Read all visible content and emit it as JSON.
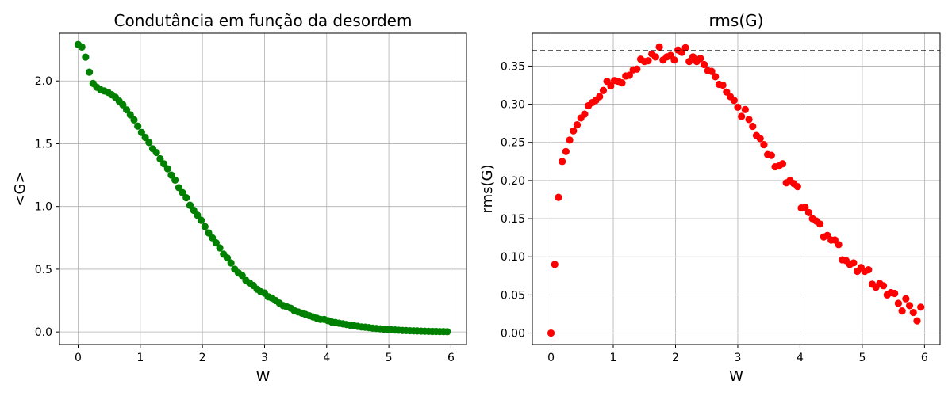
{
  "chart_data": [
    {
      "type": "scatter",
      "title": "Condutância em função da desordem",
      "xlabel": "W",
      "ylabel": "<G>",
      "xlim": [
        -0.3,
        6.25
      ],
      "ylim": [
        -0.1,
        2.38
      ],
      "xticks": [
        "0",
        "1",
        "2",
        "3",
        "4",
        "5",
        "6"
      ],
      "xtick_values": [
        0,
        1,
        2,
        3,
        4,
        5,
        6
      ],
      "yticks": [
        "0.0",
        "0.5",
        "1.0",
        "1.5",
        "2.0"
      ],
      "ytick_values": [
        0,
        0.5,
        1.0,
        1.5,
        2.0
      ],
      "grid": true,
      "color": "#008000",
      "series": [
        {
          "x": [
            0.0,
            0.06,
            0.12,
            0.18,
            0.24,
            0.3,
            0.36,
            0.42,
            0.48,
            0.54,
            0.6,
            0.66,
            0.72,
            0.78,
            0.84,
            0.9,
            0.96,
            1.02,
            1.08,
            1.14,
            1.2,
            1.26,
            1.32,
            1.38,
            1.44,
            1.5,
            1.56,
            1.62,
            1.68,
            1.74,
            1.8,
            1.86,
            1.92,
            1.98,
            2.04,
            2.1,
            2.16,
            2.22,
            2.28,
            2.34,
            2.4,
            2.46,
            2.52,
            2.58,
            2.64,
            2.7,
            2.76,
            2.82,
            2.88,
            2.94,
            3.0,
            3.06,
            3.12,
            3.18,
            3.24,
            3.3,
            3.36,
            3.42,
            3.48,
            3.54,
            3.6,
            3.66,
            3.72,
            3.78,
            3.84,
            3.9,
            3.96,
            4.02,
            4.08,
            4.14,
            4.2,
            4.26,
            4.32,
            4.38,
            4.44,
            4.5,
            4.56,
            4.62,
            4.68,
            4.74,
            4.8,
            4.86,
            4.92,
            4.98,
            5.04,
            5.1,
            5.16,
            5.22,
            5.28,
            5.34,
            5.4,
            5.46,
            5.52,
            5.58,
            5.64,
            5.7,
            5.76,
            5.82,
            5.88,
            5.94
          ],
          "y": [
            2.29,
            2.27,
            2.19,
            2.07,
            1.98,
            1.95,
            1.93,
            1.92,
            1.91,
            1.89,
            1.87,
            1.84,
            1.81,
            1.77,
            1.73,
            1.69,
            1.64,
            1.59,
            1.55,
            1.51,
            1.46,
            1.43,
            1.38,
            1.34,
            1.3,
            1.25,
            1.21,
            1.15,
            1.11,
            1.07,
            1.01,
            0.97,
            0.93,
            0.89,
            0.84,
            0.79,
            0.75,
            0.71,
            0.67,
            0.62,
            0.59,
            0.55,
            0.5,
            0.47,
            0.45,
            0.41,
            0.39,
            0.37,
            0.34,
            0.32,
            0.31,
            0.28,
            0.27,
            0.25,
            0.23,
            0.21,
            0.2,
            0.19,
            0.17,
            0.16,
            0.15,
            0.14,
            0.13,
            0.12,
            0.11,
            0.1,
            0.1,
            0.09,
            0.08,
            0.075,
            0.07,
            0.065,
            0.06,
            0.055,
            0.05,
            0.045,
            0.04,
            0.038,
            0.035,
            0.03,
            0.028,
            0.025,
            0.022,
            0.02,
            0.018,
            0.016,
            0.014,
            0.012,
            0.011,
            0.01,
            0.009,
            0.008,
            0.007,
            0.006,
            0.005,
            0.004,
            0.004,
            0.003,
            0.003,
            0.002
          ]
        }
      ]
    },
    {
      "type": "scatter",
      "title": "rms(G)",
      "xlabel": "W",
      "ylabel": "rms(G)",
      "xlim": [
        -0.3,
        6.25
      ],
      "ylim": [
        -0.015,
        0.393
      ],
      "xticks": [
        "0",
        "1",
        "2",
        "3",
        "4",
        "5",
        "6"
      ],
      "xtick_values": [
        0,
        1,
        2,
        3,
        4,
        5,
        6
      ],
      "yticks": [
        "0.00",
        "0.05",
        "0.10",
        "0.15",
        "0.20",
        "0.25",
        "0.30",
        "0.35"
      ],
      "ytick_values": [
        0,
        0.05,
        0.1,
        0.15,
        0.2,
        0.25,
        0.3,
        0.35
      ],
      "grid": true,
      "color": "#ff0000",
      "reference_line": {
        "y": 0.37,
        "style": "dashed",
        "color": "#000000"
      },
      "series": [
        {
          "x": [
            0.0,
            0.06,
            0.12,
            0.18,
            0.24,
            0.3,
            0.36,
            0.42,
            0.48,
            0.54,
            0.6,
            0.66,
            0.72,
            0.78,
            0.84,
            0.9,
            0.96,
            1.02,
            1.08,
            1.14,
            1.2,
            1.26,
            1.32,
            1.38,
            1.44,
            1.5,
            1.56,
            1.62,
            1.68,
            1.74,
            1.8,
            1.86,
            1.92,
            1.98,
            2.04,
            2.1,
            2.16,
            2.22,
            2.28,
            2.34,
            2.4,
            2.46,
            2.52,
            2.58,
            2.64,
            2.7,
            2.76,
            2.82,
            2.88,
            2.94,
            3.0,
            3.06,
            3.12,
            3.18,
            3.24,
            3.3,
            3.36,
            3.42,
            3.48,
            3.54,
            3.6,
            3.66,
            3.72,
            3.78,
            3.84,
            3.9,
            3.96,
            4.02,
            4.08,
            4.14,
            4.2,
            4.26,
            4.32,
            4.38,
            4.44,
            4.5,
            4.56,
            4.62,
            4.68,
            4.74,
            4.8,
            4.86,
            4.92,
            4.98,
            5.04,
            5.1,
            5.16,
            5.22,
            5.28,
            5.34,
            5.4,
            5.46,
            5.52,
            5.58,
            5.64,
            5.7,
            5.76,
            5.82,
            5.88,
            5.94
          ],
          "y": [
            0.0,
            0.09,
            0.178,
            0.225,
            0.238,
            0.253,
            0.265,
            0.273,
            0.282,
            0.287,
            0.298,
            0.302,
            0.305,
            0.31,
            0.318,
            0.33,
            0.324,
            0.331,
            0.33,
            0.328,
            0.337,
            0.338,
            0.345,
            0.346,
            0.359,
            0.356,
            0.357,
            0.366,
            0.362,
            0.375,
            0.358,
            0.362,
            0.364,
            0.358,
            0.371,
            0.368,
            0.374,
            0.356,
            0.362,
            0.356,
            0.36,
            0.352,
            0.344,
            0.343,
            0.336,
            0.326,
            0.325,
            0.316,
            0.31,
            0.305,
            0.296,
            0.284,
            0.293,
            0.28,
            0.271,
            0.259,
            0.255,
            0.247,
            0.234,
            0.233,
            0.218,
            0.219,
            0.222,
            0.197,
            0.2,
            0.196,
            0.192,
            0.164,
            0.165,
            0.158,
            0.15,
            0.147,
            0.143,
            0.126,
            0.128,
            0.122,
            0.122,
            0.116,
            0.096,
            0.095,
            0.09,
            0.092,
            0.081,
            0.086,
            0.081,
            0.083,
            0.064,
            0.06,
            0.065,
            0.062,
            0.05,
            0.053,
            0.052,
            0.039,
            0.029,
            0.045,
            0.036,
            0.027,
            0.016,
            0.034
          ]
        }
      ]
    }
  ]
}
